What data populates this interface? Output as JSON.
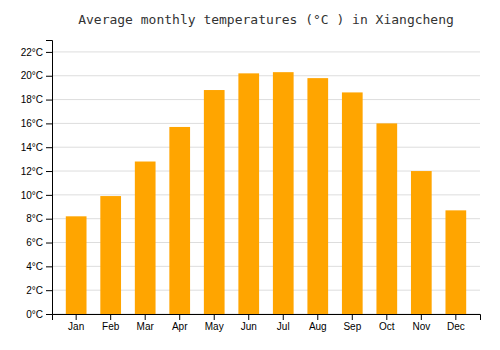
{
  "chart_data": {
    "type": "bar",
    "title": "Average monthly temperatures (°C ) in Xiangcheng",
    "categories": [
      "Jan",
      "Feb",
      "Mar",
      "Apr",
      "May",
      "Jun",
      "Jul",
      "Aug",
      "Sep",
      "Oct",
      "Nov",
      "Dec"
    ],
    "values": [
      8.2,
      9.9,
      12.8,
      15.7,
      18.8,
      20.2,
      20.3,
      19.8,
      18.6,
      16.0,
      12.0,
      8.7
    ],
    "color": "#FFA500",
    "ylim": [
      0,
      23
    ],
    "yticks": [
      {
        "value": 0,
        "label": "0°C"
      },
      {
        "value": 2,
        "label": "2°C"
      },
      {
        "value": 4,
        "label": "4°C"
      },
      {
        "value": 6,
        "label": "6°C"
      },
      {
        "value": 8,
        "label": "8°C"
      },
      {
        "value": 10,
        "label": "10°C"
      },
      {
        "value": 12,
        "label": "12°C"
      },
      {
        "value": 14,
        "label": "14°C"
      },
      {
        "value": 16,
        "label": "16°C"
      },
      {
        "value": 18,
        "label": "18°C"
      },
      {
        "value": 20,
        "label": "20°C"
      },
      {
        "value": 22,
        "label": "22°C"
      }
    ],
    "grid": true
  }
}
